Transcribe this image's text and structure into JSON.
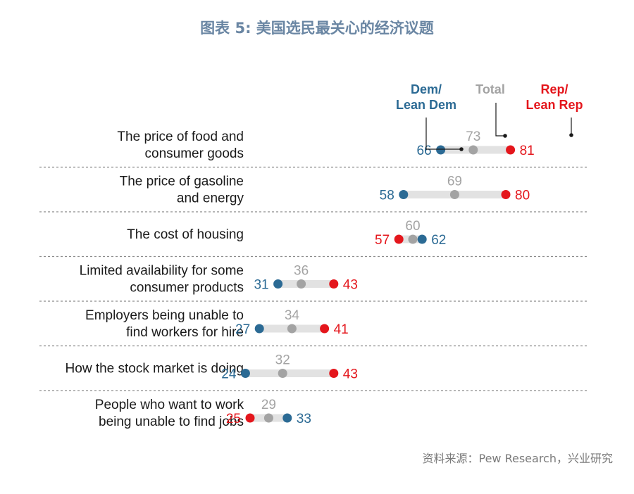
{
  "title": "图表 5: 美国选民最关心的经济议题",
  "source": "资料来源：Pew Research，兴业研究",
  "colors": {
    "dem": "#2b6a94",
    "total": "#a3a3a3",
    "rep": "#e4161c",
    "track": "#e2e2e2",
    "title": "#6a86a3"
  },
  "chart_data": {
    "type": "dot",
    "legend": {
      "dem": [
        "Dem/",
        "Lean Dem"
      ],
      "total": "Total",
      "rep": [
        "Rep/",
        "Lean Rep"
      ]
    },
    "categories": [
      [
        "The price of food and",
        "consumer goods"
      ],
      [
        "The price of gasoline",
        "and energy"
      ],
      [
        "The cost of housing"
      ],
      [
        "Limited availability for some",
        "consumer products"
      ],
      [
        "Employers being unable to",
        "find workers for hire"
      ],
      [
        "How the stock market is doing"
      ],
      [
        "People who want to work",
        "being unable to find jobs"
      ]
    ],
    "series": [
      {
        "name": "Dem/Lean Dem",
        "values": [
          66,
          58,
          62,
          31,
          27,
          24,
          33
        ]
      },
      {
        "name": "Total",
        "values": [
          73,
          69,
          60,
          36,
          34,
          32,
          29
        ]
      },
      {
        "name": "Rep/Lean Rep",
        "values": [
          81,
          80,
          57,
          43,
          41,
          43,
          25
        ]
      }
    ]
  }
}
